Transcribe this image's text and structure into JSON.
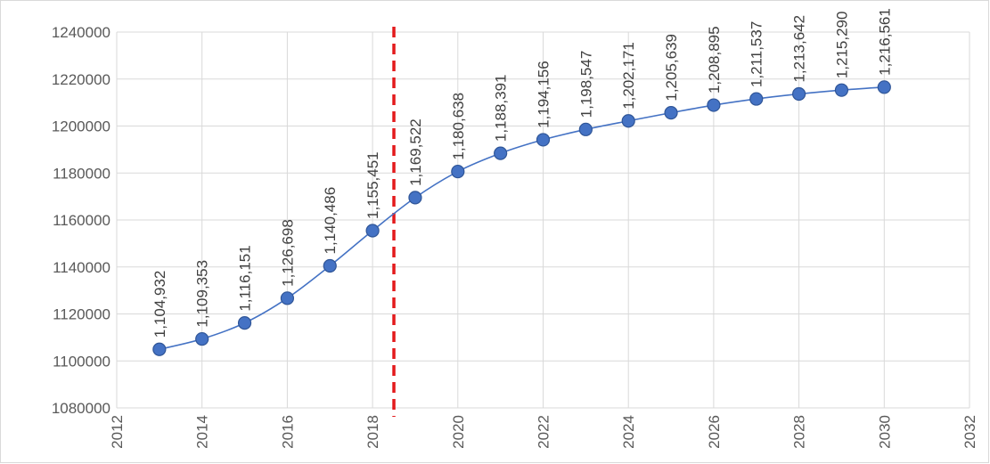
{
  "chart_data": {
    "type": "scatter",
    "title": "",
    "xlabel": "",
    "ylabel": "",
    "xlim": [
      2012,
      2032
    ],
    "ylim": [
      1080000,
      1240000
    ],
    "x_ticks": [
      "2012",
      "2014",
      "2016",
      "2018",
      "2020",
      "2022",
      "2024",
      "2026",
      "2028",
      "2030",
      "2032"
    ],
    "y_ticks": [
      "1080000",
      "1100000",
      "1120000",
      "1140000",
      "1160000",
      "1180000",
      "1200000",
      "1220000",
      "1240000"
    ],
    "grid": true,
    "legend": "none",
    "line_style": "smooth",
    "reference_line": {
      "x": 2018.5,
      "style": "dashed",
      "color": "#e31a1c"
    },
    "series": [
      {
        "color": "#4472c4",
        "x": [
          2013,
          2014,
          2015,
          2016,
          2017,
          2018,
          2019,
          2020,
          2021,
          2022,
          2023,
          2024,
          2025,
          2026,
          2027,
          2028,
          2029,
          2030
        ],
        "y": [
          1104932,
          1109353,
          1116151,
          1126698,
          1140486,
          1155451,
          1169522,
          1180638,
          1188391,
          1194156,
          1198547,
          1202171,
          1205639,
          1208895,
          1211537,
          1213642,
          1215290,
          1216561
        ],
        "labels": [
          "1,104,932",
          "1,109,353",
          "1,116,151",
          "1,126,698",
          "1,140,486",
          "1,155,451",
          "1,169,522",
          "1,180,638",
          "1,188,391",
          "1,194,156",
          "1,198,547",
          "1,202,171",
          "1,205,639",
          "1,208,895",
          "1,211,537",
          "1,213,642",
          "1,215,290",
          "1,216,561"
        ]
      }
    ]
  }
}
